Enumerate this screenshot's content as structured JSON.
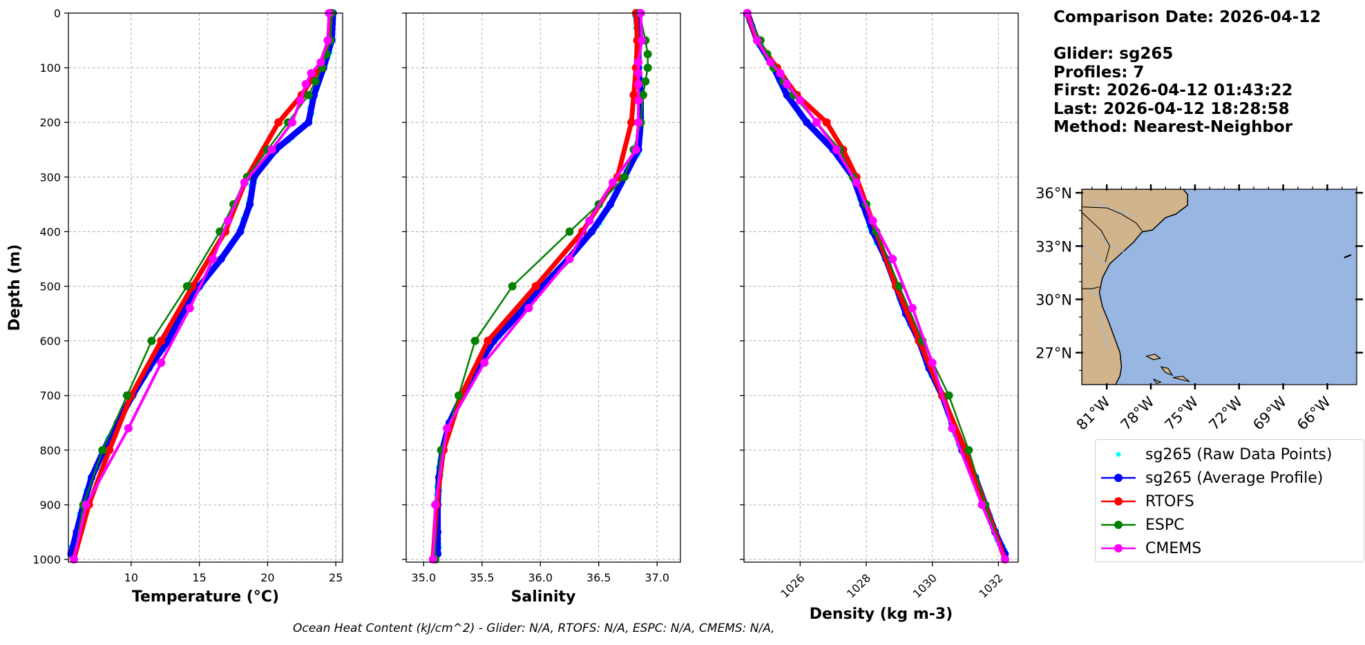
{
  "info": {
    "comparison_date": "Comparison Date: 2026-04-12",
    "glider": "Glider: sg265",
    "profiles": "Profiles: 7",
    "first": "First: 2026-04-12 01:43:22",
    "last": "Last: 2026-04-12 18:28:58",
    "method": "Method: Nearest-Neighbor"
  },
  "footer": "Ocean Heat Content (kJ/cm^2) - Glider: N/A,  RTOFS: N/A,  ESPC: N/A,  CMEMS: N/A,",
  "legend": [
    {
      "label": "sg265 (Raw Data Points)",
      "color": "#00ffff",
      "style": "points"
    },
    {
      "label": "sg265 (Average Profile)",
      "color": "#0000ff",
      "style": "line-marker"
    },
    {
      "label": "RTOFS",
      "color": "#ff0000",
      "style": "line-marker"
    },
    {
      "label": "ESPC",
      "color": "#008000",
      "style": "line-marker"
    },
    {
      "label": "CMEMS",
      "color": "#ff00ff",
      "style": "line-marker"
    }
  ],
  "colors": {
    "raw": "#00ffff",
    "glider": "#0000ff",
    "rtofs": "#ff0000",
    "espc": "#008000",
    "cmems": "#ff00ff",
    "land": "#d2b48c",
    "ocean": "#98b6e2",
    "rivers": "#a9b8c8",
    "grid": "#b0b0b0"
  },
  "chart_data": [
    {
      "type": "line",
      "xlabel": "Temperature (°C)",
      "ylabel": "Depth (m)",
      "xlim": [
        5.4,
        25.5
      ],
      "ylim": [
        1005,
        0
      ],
      "xticks": [
        "10",
        "15",
        "20",
        "25"
      ],
      "yticks": [
        "0",
        "100",
        "200",
        "300",
        "400",
        "500",
        "600",
        "700",
        "800",
        "900",
        "1000"
      ],
      "grid": true,
      "series": [
        {
          "name": "sg265 (Average Profile)",
          "depth": [
            0,
            50,
            100,
            150,
            200,
            250,
            300,
            350,
            400,
            450,
            500,
            550,
            600,
            650,
            700,
            750,
            800,
            850,
            900,
            950,
            990
          ],
          "values": [
            24.8,
            24.7,
            24.1,
            23.4,
            23.0,
            20.6,
            19.0,
            18.7,
            18.0,
            16.6,
            15.0,
            13.7,
            12.7,
            11.3,
            10.1,
            9.0,
            8.0,
            7.1,
            6.5,
            6.0,
            5.6
          ]
        },
        {
          "name": "RTOFS",
          "depth": [
            0,
            50,
            100,
            150,
            200,
            300,
            400,
            500,
            600,
            700,
            800,
            900,
            1000
          ],
          "values": [
            24.6,
            24.5,
            23.8,
            22.5,
            20.8,
            18.5,
            16.9,
            14.5,
            12.2,
            10.0,
            8.4,
            6.9,
            5.8
          ]
        },
        {
          "name": "ESPC",
          "depth": [
            0,
            50,
            75,
            100,
            125,
            150,
            200,
            250,
            300,
            350,
            400,
            500,
            600,
            700,
            800,
            900,
            1000
          ],
          "values": [
            24.7,
            24.6,
            24.3,
            24.0,
            23.5,
            23.0,
            21.5,
            20.0,
            18.5,
            17.5,
            16.5,
            14.1,
            11.5,
            9.7,
            7.9,
            6.5,
            5.8
          ]
        },
        {
          "name": "CMEMS",
          "depth": [
            0,
            50,
            90,
            110,
            130,
            160,
            200,
            250,
            310,
            380,
            450,
            540,
            640,
            760,
            900,
            1000
          ],
          "values": [
            24.5,
            24.4,
            23.9,
            23.2,
            22.8,
            22.4,
            21.8,
            20.3,
            18.3,
            17.1,
            16.0,
            14.3,
            12.2,
            9.8,
            6.7,
            5.8
          ]
        }
      ]
    },
    {
      "type": "line",
      "xlabel": "Salinity",
      "xlim": [
        34.85,
        37.2
      ],
      "ylim": [
        1005,
        0
      ],
      "xticks": [
        "35.0",
        "35.5",
        "36.0",
        "36.5",
        "37.0"
      ],
      "grid": true,
      "series": [
        {
          "name": "sg265 (Average Profile)",
          "depth": [
            0,
            50,
            100,
            150,
            200,
            250,
            300,
            350,
            400,
            450,
            500,
            550,
            600,
            650,
            700,
            750,
            800,
            850,
            900,
            950,
            990
          ],
          "values": [
            36.82,
            36.84,
            36.84,
            36.86,
            36.86,
            36.84,
            36.72,
            36.6,
            36.44,
            36.24,
            36.02,
            35.82,
            35.6,
            35.45,
            35.33,
            35.22,
            35.16,
            35.13,
            35.12,
            35.12,
            35.12
          ]
        },
        {
          "name": "RTOFS",
          "depth": [
            0,
            50,
            100,
            150,
            200,
            300,
            400,
            500,
            600,
            700,
            800,
            900,
            1000
          ],
          "values": [
            36.82,
            36.83,
            36.82,
            36.8,
            36.78,
            36.66,
            36.36,
            35.96,
            35.55,
            35.32,
            35.17,
            35.11,
            35.08
          ]
        },
        {
          "name": "ESPC",
          "depth": [
            0,
            50,
            75,
            100,
            125,
            150,
            200,
            250,
            300,
            350,
            400,
            500,
            600,
            700,
            800,
            900,
            1000
          ],
          "values": [
            36.85,
            36.9,
            36.92,
            36.92,
            36.9,
            36.88,
            36.86,
            36.8,
            36.72,
            36.5,
            36.25,
            35.76,
            35.44,
            35.3,
            35.15,
            35.1,
            35.1
          ]
        },
        {
          "name": "CMEMS",
          "depth": [
            0,
            50,
            90,
            110,
            130,
            160,
            200,
            250,
            310,
            380,
            450,
            540,
            640,
            760,
            900,
            1000
          ],
          "values": [
            36.86,
            36.87,
            36.84,
            36.84,
            36.84,
            36.84,
            36.84,
            36.82,
            36.62,
            36.42,
            36.25,
            35.9,
            35.52,
            35.2,
            35.1,
            35.08
          ]
        }
      ]
    },
    {
      "type": "line",
      "xlabel": "Density (kg m-3)",
      "xlim": [
        1024.3,
        1032.6
      ],
      "ylim": [
        1005,
        0
      ],
      "xticks": [
        "1026",
        "1028",
        "1030",
        "1032"
      ],
      "grid": true,
      "series": [
        {
          "name": "sg265 (Average Profile)",
          "depth": [
            0,
            50,
            100,
            150,
            200,
            250,
            300,
            350,
            400,
            450,
            500,
            550,
            600,
            650,
            700,
            750,
            800,
            850,
            900,
            950,
            990
          ],
          "values": [
            1024.4,
            1024.7,
            1025.2,
            1025.6,
            1026.2,
            1027.0,
            1027.6,
            1027.9,
            1028.2,
            1028.6,
            1028.9,
            1029.2,
            1029.6,
            1029.9,
            1030.3,
            1030.6,
            1030.9,
            1031.3,
            1031.6,
            1031.9,
            1032.2
          ]
        },
        {
          "name": "RTOFS",
          "depth": [
            0,
            50,
            100,
            150,
            200,
            250,
            300,
            400,
            500,
            600,
            700,
            800,
            900,
            1000
          ],
          "values": [
            1024.4,
            1024.7,
            1025.3,
            1025.9,
            1026.8,
            1027.3,
            1027.7,
            1028.3,
            1028.9,
            1029.6,
            1030.3,
            1031.0,
            1031.6,
            1032.2
          ]
        },
        {
          "name": "ESPC",
          "depth": [
            0,
            50,
            75,
            100,
            125,
            150,
            200,
            250,
            300,
            350,
            400,
            500,
            600,
            700,
            800,
            900,
            1000
          ],
          "values": [
            1024.4,
            1024.8,
            1025.0,
            1025.2,
            1025.5,
            1025.8,
            1026.5,
            1027.2,
            1027.6,
            1028.0,
            1028.3,
            1029.0,
            1029.7,
            1030.5,
            1031.1,
            1031.6,
            1032.2
          ]
        },
        {
          "name": "CMEMS",
          "depth": [
            0,
            50,
            90,
            110,
            130,
            160,
            200,
            250,
            310,
            380,
            450,
            540,
            640,
            760,
            900,
            1000
          ],
          "values": [
            1024.4,
            1024.7,
            1025.1,
            1025.4,
            1025.6,
            1026.0,
            1026.5,
            1027.1,
            1027.7,
            1028.2,
            1028.8,
            1029.4,
            1030.0,
            1030.6,
            1031.5,
            1032.2
          ]
        }
      ]
    }
  ],
  "map": {
    "lat_ticks": [
      "36°N",
      "33°N",
      "30°N",
      "27°N"
    ],
    "lon_ticks": [
      "81°W",
      "78°W",
      "75°W",
      "72°W",
      "69°W",
      "66°W"
    ],
    "lat_range": [
      25.2,
      36.2
    ],
    "lon_range": [
      -82.7,
      -64.0
    ]
  }
}
